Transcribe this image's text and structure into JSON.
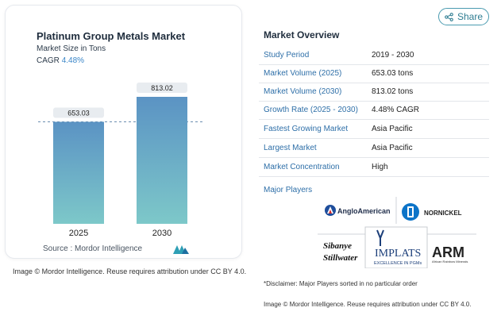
{
  "chart": {
    "title": "Platinum Group Metals Market",
    "subtitle": "Market Size in Tons",
    "cagr_label": "CAGR",
    "cagr_value": "4.48%",
    "source": "Source :  Mordor Intelligence",
    "credit": "Image © Mordor Intelligence. Reuse requires attribution under CC BY 4.0.",
    "colors": {
      "bar_top": "#5b93c4",
      "bar_bottom": "#7dc8c9",
      "label_bg": "#e8ecf0"
    }
  },
  "chart_data": {
    "type": "bar",
    "categories": [
      "2025",
      "2030"
    ],
    "values": [
      653.03,
      813.02
    ],
    "value_labels": [
      "653.03",
      "813.02"
    ],
    "title": "Platinum Group Metals Market",
    "subtitle": "Market Size in Tons",
    "xlabel": "",
    "ylabel": "",
    "ylim": [
      0,
      813.02
    ],
    "grid": false,
    "reference_line": "dashed line at 2025 value"
  },
  "share": {
    "label": "Share"
  },
  "overview": {
    "title": "Market Overview",
    "rows": [
      {
        "key": "Study Period",
        "value": "2019 - 2030"
      },
      {
        "key": "Market Volume (2025)",
        "value": "653.03 tons"
      },
      {
        "key": "Market Volume (2030)",
        "value": "813.02 tons"
      },
      {
        "key": "Growth Rate (2025 - 2030)",
        "value": "4.48% CAGR"
      },
      {
        "key": "Fastest Growing Market",
        "value": "Asia Pacific"
      },
      {
        "key": "Largest Market",
        "value": "Asia Pacific"
      },
      {
        "key": "Market Concentration",
        "value": "High"
      }
    ]
  },
  "players": {
    "title": "Major Players",
    "logos": [
      "AngloAmerican",
      "NORNICKEL",
      "Sibanye Stillwater",
      "IMPLATS",
      "EXCELLENCE IN PGMs",
      "ARM",
      "African Rainbow Minerals"
    ]
  },
  "disclaimer": "*Disclaimer: Major Players sorted in no particular order",
  "credit_right": "Image © Mordor Intelligence. Reuse requires attribution under CC BY 4.0."
}
